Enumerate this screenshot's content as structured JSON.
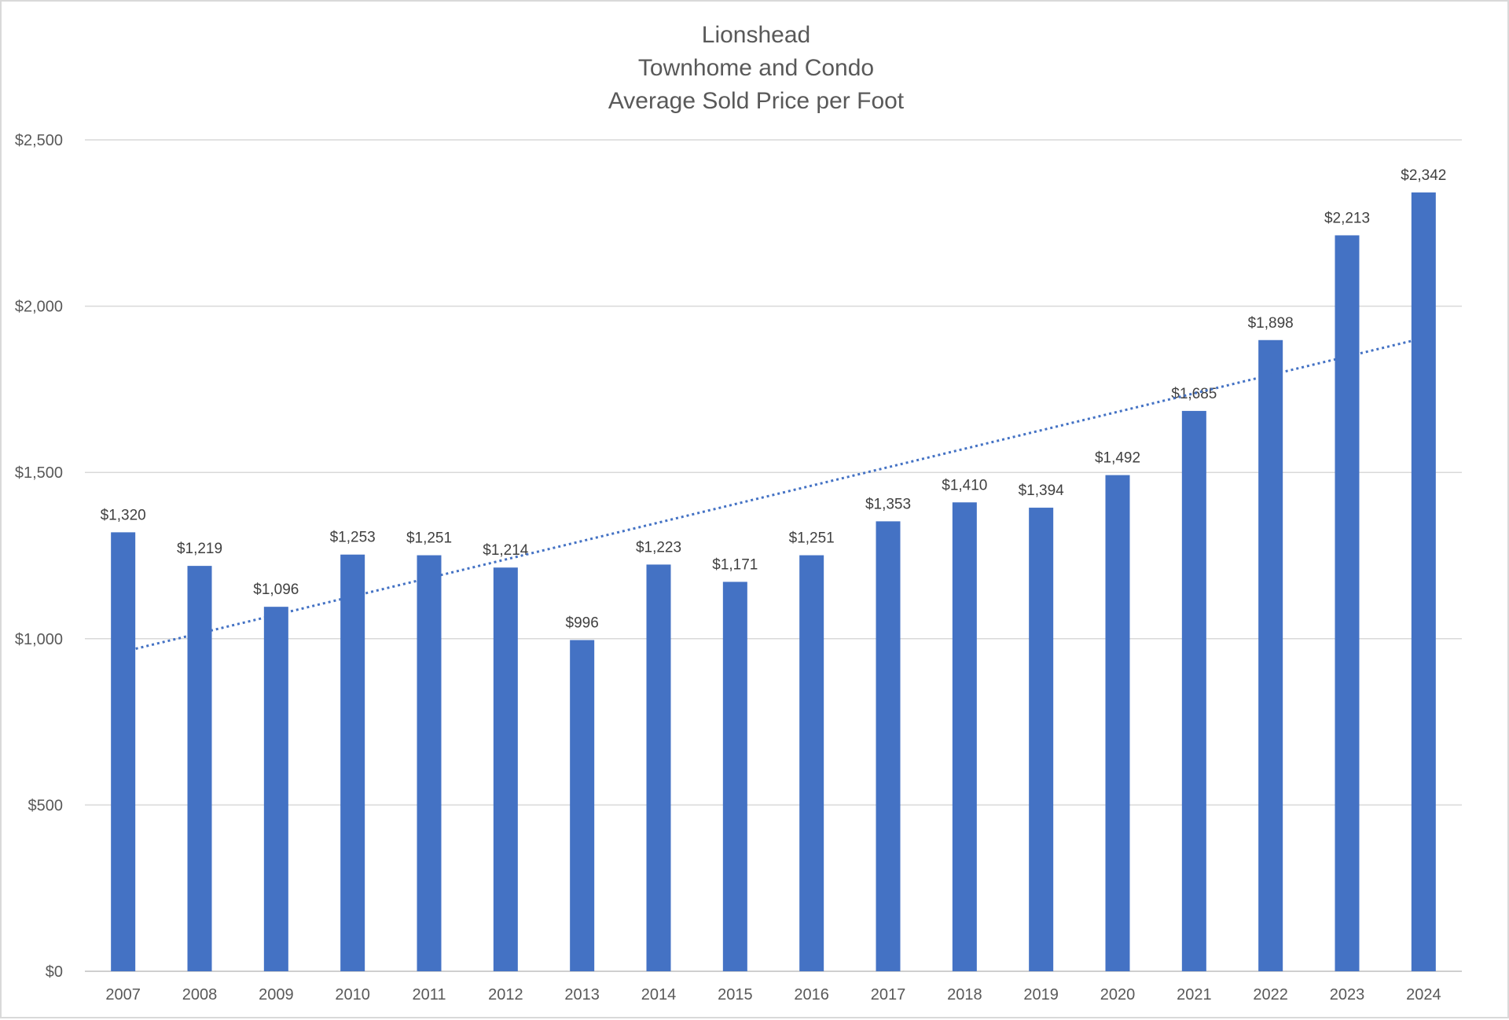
{
  "chart_data": {
    "type": "bar",
    "title": [
      "Lionshead",
      "Townhome and Condo",
      "Average Sold Price per Foot"
    ],
    "categories": [
      "2007",
      "2008",
      "2009",
      "2010",
      "2011",
      "2012",
      "2013",
      "2014",
      "2015",
      "2016",
      "2017",
      "2018",
      "2019",
      "2020",
      "2021",
      "2022",
      "2023",
      "2024"
    ],
    "values": [
      1320,
      1219,
      1096,
      1253,
      1251,
      1214,
      996,
      1223,
      1171,
      1251,
      1353,
      1410,
      1394,
      1492,
      1685,
      1898,
      2213,
      2342
    ],
    "data_labels": [
      "$1,320",
      "$1,219",
      "$1,096",
      "$1,253",
      "$1,251",
      "$1,214",
      "$996",
      "$1,223",
      "$1,171",
      "$1,251",
      "$1,353",
      "$1,410",
      "$1,394",
      "$1,492",
      "$1,685",
      "$1,898",
      "$2,213",
      "$2,342"
    ],
    "ylim": [
      0,
      2500
    ],
    "y_ticks": [
      0,
      500,
      1000,
      1500,
      2000,
      2500
    ],
    "y_tick_labels": [
      "$0",
      "$500",
      "$1,000",
      "$1,500",
      "$2,000",
      "$2,500"
    ],
    "xlabel": "",
    "ylabel": "",
    "grid": true,
    "legend": "none",
    "trendline": {
      "type": "linear",
      "style": "dotted",
      "start_value": 970,
      "end_value": 1895
    },
    "colors": {
      "bar": "#4472C4",
      "trendline": "#4472C4",
      "grid": "#D9D9D9",
      "text": "#595959"
    }
  }
}
